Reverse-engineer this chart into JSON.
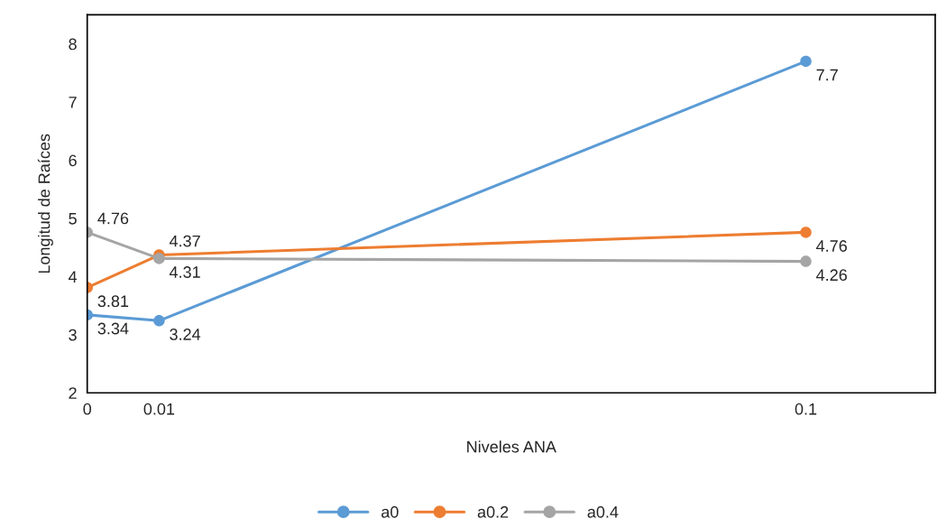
{
  "chart_data": {
    "type": "line",
    "xlabel": "Niveles ANA",
    "ylabel": "Longitud de Raíces",
    "x": [
      0,
      0.01,
      0.1
    ],
    "series": [
      {
        "name": "a0",
        "color": "#5b9bd5",
        "values": [
          3.34,
          3.24,
          7.7
        ]
      },
      {
        "name": "a0.2",
        "color": "#ed7d31",
        "values": [
          3.81,
          4.37,
          4.76
        ]
      },
      {
        "name": "a0.4",
        "color": "#a5a5a5",
        "values": [
          4.76,
          4.31,
          4.26
        ]
      }
    ],
    "xlim": [
      0,
      0.118
    ],
    "xticks": [
      0,
      0.01,
      0.1
    ],
    "ylim": [
      2,
      8.5
    ],
    "yticks": [
      2,
      3,
      4,
      5,
      6,
      7,
      8
    ],
    "grid": false,
    "legend": "bottom",
    "marker": "circle",
    "line_style": "solid",
    "data_labels": true
  }
}
